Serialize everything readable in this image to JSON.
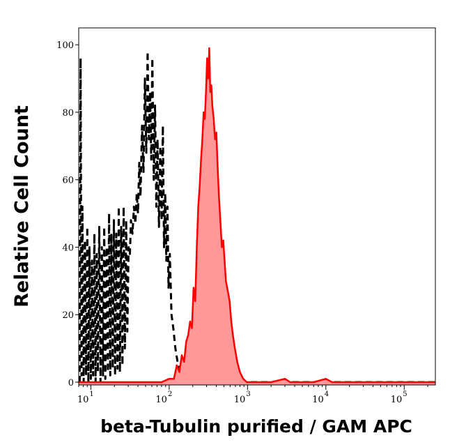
{
  "chart_data": {
    "type": "area",
    "xlabel": "beta-Tubulin purified / GAM APC",
    "ylabel": "Relative Cell Count",
    "x_scale": "log",
    "xlim": [
      7,
      250000
    ],
    "ylim": [
      0,
      105
    ],
    "x_ticks": [
      {
        "value": 10,
        "base": "10",
        "exp": "1"
      },
      {
        "value": 100,
        "base": "10",
        "exp": "2"
      },
      {
        "value": 1000,
        "base": "10",
        "exp": "3"
      },
      {
        "value": 10000,
        "base": "10",
        "exp": "4"
      },
      {
        "value": 100000,
        "base": "10",
        "exp": "5"
      }
    ],
    "y_ticks": [
      0,
      20,
      40,
      60,
      80,
      100
    ],
    "series": [
      {
        "style": "dashed",
        "color": "#000000",
        "fill": "none",
        "points": [
          [
            7.2,
            0
          ],
          [
            7.4,
            96
          ],
          [
            7.6,
            2
          ],
          [
            7.8,
            52
          ],
          [
            8.1,
            0
          ],
          [
            8.4,
            42
          ],
          [
            8.7,
            2
          ],
          [
            9.0,
            46
          ],
          [
            9.3,
            0
          ],
          [
            9.6,
            40
          ],
          [
            10.0,
            1
          ],
          [
            10.3,
            36
          ],
          [
            10.7,
            2
          ],
          [
            11.1,
            44
          ],
          [
            11.5,
            0
          ],
          [
            11.9,
            38
          ],
          [
            12.3,
            3
          ],
          [
            12.8,
            46
          ],
          [
            13.3,
            0
          ],
          [
            13.8,
            40
          ],
          [
            14.3,
            2
          ],
          [
            14.8,
            46
          ],
          [
            15.3,
            1
          ],
          [
            15.9,
            40
          ],
          [
            16.5,
            3
          ],
          [
            17.1,
            50
          ],
          [
            17.7,
            2
          ],
          [
            18.3,
            44
          ],
          [
            19.0,
            4
          ],
          [
            19.7,
            48
          ],
          [
            20.4,
            2
          ],
          [
            21.1,
            44
          ],
          [
            21.9,
            4
          ],
          [
            22.7,
            52
          ],
          [
            23.5,
            3
          ],
          [
            24.4,
            46
          ],
          [
            25.3,
            5
          ],
          [
            26.2,
            52
          ],
          [
            27.2,
            10
          ],
          [
            28.2,
            48
          ],
          [
            29.2,
            15
          ],
          [
            30.3,
            40
          ],
          [
            31.5,
            38
          ],
          [
            32.5,
            48
          ],
          [
            34.0,
            44
          ],
          [
            35.5,
            52
          ],
          [
            37.0,
            47
          ],
          [
            38.5,
            56
          ],
          [
            40.0,
            50
          ],
          [
            41.5,
            65
          ],
          [
            43.0,
            55
          ],
          [
            45.0,
            76
          ],
          [
            47.0,
            62
          ],
          [
            49.0,
            90
          ],
          [
            51.0,
            68
          ],
          [
            53.0,
            98
          ],
          [
            55.0,
            72
          ],
          [
            57.0,
            86
          ],
          [
            59.0,
            66
          ],
          [
            61.0,
            96
          ],
          [
            63.5,
            60
          ],
          [
            66.0,
            82
          ],
          [
            68.5,
            52
          ],
          [
            71.0,
            72
          ],
          [
            74.0,
            46
          ],
          [
            77.0,
            70
          ],
          [
            80.0,
            48
          ],
          [
            83.0,
            76
          ],
          [
            86.0,
            40
          ],
          [
            89.0,
            56
          ],
          [
            92.0,
            36
          ],
          [
            95.0,
            52
          ],
          [
            98.0,
            28
          ],
          [
            102,
            38
          ],
          [
            107,
            20
          ],
          [
            113,
            16
          ],
          [
            120,
            10
          ],
          [
            128,
            6
          ],
          [
            137,
            3
          ],
          [
            148,
            1
          ],
          [
            160,
            0
          ],
          [
            300,
            0
          ],
          [
            1000,
            0
          ],
          [
            250000,
            0
          ]
        ]
      },
      {
        "style": "solid",
        "color": "#ff0000",
        "fill": "#ff9999",
        "points": [
          [
            7,
            0
          ],
          [
            80,
            0
          ],
          [
            100,
            1
          ],
          [
            115,
            1
          ],
          [
            125,
            5
          ],
          [
            135,
            3
          ],
          [
            145,
            8
          ],
          [
            155,
            6
          ],
          [
            165,
            12
          ],
          [
            175,
            14
          ],
          [
            185,
            18
          ],
          [
            195,
            16
          ],
          [
            205,
            28
          ],
          [
            215,
            24
          ],
          [
            225,
            40
          ],
          [
            235,
            52
          ],
          [
            245,
            58
          ],
          [
            255,
            66
          ],
          [
            265,
            72
          ],
          [
            275,
            80
          ],
          [
            285,
            78
          ],
          [
            295,
            86
          ],
          [
            305,
            96
          ],
          [
            315,
            90
          ],
          [
            325,
            99
          ],
          [
            335,
            86
          ],
          [
            345,
            88
          ],
          [
            355,
            82
          ],
          [
            370,
            78
          ],
          [
            385,
            72
          ],
          [
            400,
            74
          ],
          [
            415,
            64
          ],
          [
            430,
            56
          ],
          [
            450,
            48
          ],
          [
            470,
            40
          ],
          [
            490,
            42
          ],
          [
            510,
            36
          ],
          [
            530,
            30
          ],
          [
            550,
            28
          ],
          [
            570,
            26
          ],
          [
            590,
            24
          ],
          [
            620,
            18
          ],
          [
            650,
            14
          ],
          [
            690,
            10
          ],
          [
            740,
            6
          ],
          [
            800,
            3
          ],
          [
            880,
            1
          ],
          [
            980,
            0
          ],
          [
            1300,
            0
          ],
          [
            2000,
            0
          ],
          [
            3000,
            1
          ],
          [
            3500,
            0
          ],
          [
            7000,
            0
          ],
          [
            10000,
            1
          ],
          [
            12000,
            0
          ],
          [
            250000,
            0
          ]
        ]
      }
    ]
  }
}
